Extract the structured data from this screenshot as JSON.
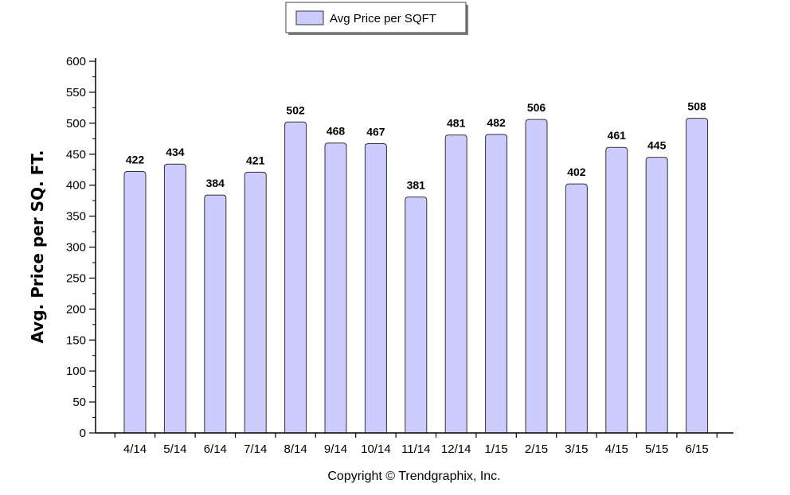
{
  "chart_data": {
    "type": "bar",
    "categories": [
      "4/14",
      "5/14",
      "6/14",
      "7/14",
      "8/14",
      "9/14",
      "10/14",
      "11/14",
      "12/14",
      "1/15",
      "2/15",
      "3/15",
      "4/15",
      "5/15",
      "6/15"
    ],
    "series": [
      {
        "name": "Avg Price per SQFT",
        "values": [
          422,
          434,
          384,
          421,
          502,
          468,
          467,
          381,
          481,
          482,
          506,
          402,
          461,
          445,
          508
        ],
        "color": "#ccccff"
      }
    ],
    "data_labels": [
      "422",
      "434",
      "384",
      "421",
      "502",
      "468",
      "467",
      "381",
      "481",
      "482",
      "506",
      "402",
      "461",
      "445",
      "508"
    ],
    "y_ticks": [
      0,
      50,
      100,
      150,
      200,
      250,
      300,
      350,
      400,
      450,
      500,
      550,
      600
    ],
    "y_tick_labels": [
      "0",
      "50",
      "100",
      "150",
      "200",
      "250",
      "300",
      "350",
      "400",
      "450",
      "500",
      "550",
      "600"
    ],
    "ylim": [
      0,
      600
    ],
    "ylabel": "Avg. Price per SQ. FT.",
    "xlabel": "",
    "title": "",
    "legend_position": "top-center",
    "grid": false,
    "bar_edge_color": "#333333"
  },
  "footer": {
    "copyright": "Copyright © Trendgraphix, Inc."
  }
}
